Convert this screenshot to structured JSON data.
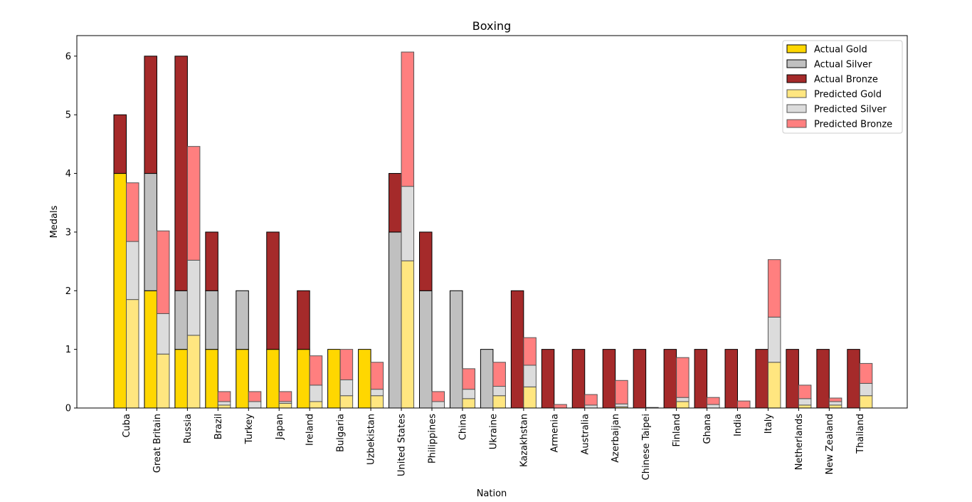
{
  "chart_data": {
    "type": "bar",
    "stacked": true,
    "grouped": true,
    "title": "Boxing",
    "xlabel": "Nation",
    "ylabel": "Medals",
    "ylim": [
      0,
      6.35
    ],
    "yticks": [
      0,
      1,
      2,
      3,
      4,
      5,
      6
    ],
    "grid": false,
    "legend_position": "top-right",
    "categories": [
      "Cuba",
      "Great Britain",
      "Russia",
      "Brazil",
      "Turkey",
      "Japan",
      "Ireland",
      "Bulgaria",
      "Uzbekistan",
      "United States",
      "Philippines",
      "China",
      "Ukraine",
      "Kazakhstan",
      "Armenia",
      "Australia",
      "Azerbaijan",
      "Chinese Taipei",
      "Finland",
      "Ghana",
      "India",
      "Italy",
      "Netherlands",
      "New Zealand",
      "Thailand"
    ],
    "groups": [
      {
        "name": "Actual",
        "series": [
          {
            "name": "Actual Gold",
            "color": "#FFD700",
            "values": [
              4,
              2,
              1,
              1,
              1,
              1,
              1,
              1,
              1,
              0,
              0,
              0,
              0,
              0,
              0,
              0,
              0,
              0,
              0,
              0,
              0,
              0,
              0,
              0,
              0
            ]
          },
          {
            "name": "Actual Silver",
            "color": "#C0C0C0",
            "values": [
              0,
              2,
              1,
              1,
              1,
              0,
              0,
              0,
              0,
              3,
              2,
              2,
              1,
              0,
              0,
              0,
              0,
              0,
              0,
              0,
              0,
              0,
              0,
              0,
              0
            ]
          },
          {
            "name": "Actual Bronze",
            "color": "#A52A2A",
            "values": [
              1,
              2,
              4,
              1,
              0,
              2,
              1,
              0,
              0,
              1,
              1,
              0,
              0,
              2,
              1,
              1,
              1,
              1,
              1,
              1,
              1,
              1,
              1,
              1,
              1
            ]
          }
        ]
      },
      {
        "name": "Predicted",
        "series": [
          {
            "name": "Predicted Gold",
            "color": "#FFE680",
            "values": [
              1.85,
              0.92,
              1.24,
              0.05,
              0.0,
              0.08,
              0.11,
              0.21,
              0.21,
              2.51,
              0.0,
              0.16,
              0.21,
              0.36,
              0.0,
              0.0,
              0.02,
              0.0,
              0.11,
              0.0,
              0.0,
              0.78,
              0.05,
              0.05,
              0.21
            ]
          },
          {
            "name": "Predicted Silver",
            "color": "#DCDCDC",
            "values": [
              0.99,
              0.69,
              1.28,
              0.06,
              0.11,
              0.03,
              0.28,
              0.27,
              0.11,
              1.27,
              0.11,
              0.16,
              0.16,
              0.37,
              0.0,
              0.05,
              0.05,
              0.0,
              0.07,
              0.06,
              0.0,
              0.77,
              0.11,
              0.06,
              0.21
            ]
          },
          {
            "name": "Predicted Bronze",
            "color": "#FF7F7F",
            "values": [
              1.0,
              1.41,
              1.94,
              0.17,
              0.17,
              0.17,
              0.5,
              0.52,
              0.46,
              2.29,
              0.17,
              0.35,
              0.41,
              0.47,
              0.06,
              0.18,
              0.4,
              0.01,
              0.68,
              0.12,
              0.12,
              0.98,
              0.23,
              0.06,
              0.34
            ]
          }
        ]
      }
    ]
  }
}
